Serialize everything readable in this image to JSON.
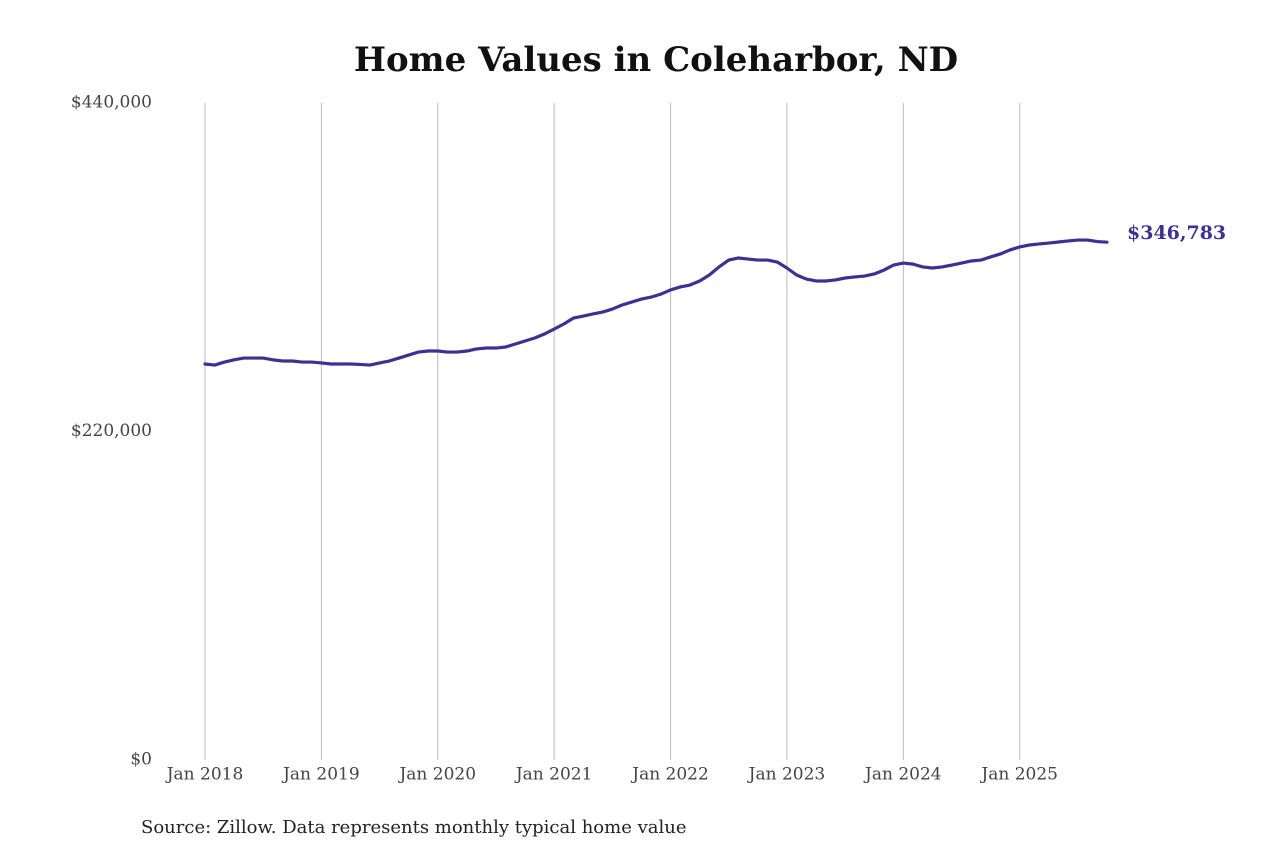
{
  "chart_data": {
    "type": "line",
    "title": "Home Values in Coleharbor, ND",
    "source": "Source: Zillow. Data represents monthly typical home value",
    "x": [
      "2018-01",
      "2018-02",
      "2018-03",
      "2018-04",
      "2018-05",
      "2018-06",
      "2018-07",
      "2018-08",
      "2018-09",
      "2018-10",
      "2018-11",
      "2018-12",
      "2019-01",
      "2019-02",
      "2019-03",
      "2019-04",
      "2019-05",
      "2019-06",
      "2019-07",
      "2019-08",
      "2019-09",
      "2019-10",
      "2019-11",
      "2019-12",
      "2020-01",
      "2020-02",
      "2020-03",
      "2020-04",
      "2020-05",
      "2020-06",
      "2020-07",
      "2020-08",
      "2020-09",
      "2020-10",
      "2020-11",
      "2020-12",
      "2021-01",
      "2021-02",
      "2021-03",
      "2021-04",
      "2021-05",
      "2021-06",
      "2021-07",
      "2021-08",
      "2021-09",
      "2021-10",
      "2021-11",
      "2021-12",
      "2022-01",
      "2022-02",
      "2022-03",
      "2022-04",
      "2022-05",
      "2022-06",
      "2022-07",
      "2022-08",
      "2022-09",
      "2022-10",
      "2022-11",
      "2022-12",
      "2023-01",
      "2023-02",
      "2023-03",
      "2023-04",
      "2023-05",
      "2023-06",
      "2023-07",
      "2023-08",
      "2023-09",
      "2023-10",
      "2023-11",
      "2023-12",
      "2024-01",
      "2024-02",
      "2024-03",
      "2024-04",
      "2024-05",
      "2024-06",
      "2024-07",
      "2024-08",
      "2024-09",
      "2024-10",
      "2024-11",
      "2024-12",
      "2025-01",
      "2025-02",
      "2025-03",
      "2025-04",
      "2025-05",
      "2025-06",
      "2025-07",
      "2025-08",
      "2025-09",
      "2025-10"
    ],
    "series": [
      {
        "color": "#3b3192",
        "values": [
          265200,
          264500,
          266500,
          268000,
          269200,
          269200,
          269200,
          268000,
          267200,
          267200,
          266500,
          266500,
          265900,
          265200,
          265200,
          265200,
          264900,
          264500,
          265900,
          267200,
          269200,
          271200,
          273200,
          273900,
          273900,
          273200,
          273200,
          273900,
          275300,
          275900,
          275900,
          276600,
          278600,
          280600,
          282600,
          285300,
          288600,
          292000,
          296000,
          297300,
          298700,
          300000,
          302000,
          304700,
          306700,
          308700,
          310000,
          312000,
          314800,
          316800,
          318100,
          320800,
          324800,
          330200,
          334800,
          336200,
          335500,
          334800,
          334800,
          333500,
          329500,
          324800,
          322100,
          320800,
          320800,
          321500,
          322800,
          323500,
          324100,
          325500,
          328100,
          331500,
          332800,
          332100,
          330200,
          329500,
          330200,
          331500,
          332800,
          334200,
          334800,
          336900,
          338900,
          341600,
          343600,
          344900,
          345600,
          346200,
          346900,
          347600,
          348200,
          348200,
          347200,
          346783
        ],
        "value_labels": [
          null,
          null,
          null,
          null,
          null,
          null,
          null,
          null,
          null,
          null,
          null,
          null,
          null,
          null,
          null,
          null,
          null,
          null,
          null,
          null,
          null,
          null,
          null,
          null,
          null,
          null,
          null,
          null,
          null,
          null,
          null,
          null,
          null,
          null,
          null,
          null,
          null,
          null,
          null,
          null,
          null,
          null,
          null,
          null,
          null,
          null,
          null,
          null,
          null,
          null,
          null,
          null,
          null,
          null,
          null,
          null,
          null,
          null,
          null,
          null,
          null,
          null,
          null,
          null,
          null,
          null,
          null,
          null,
          null,
          null,
          null,
          null,
          null,
          null,
          null,
          null,
          null,
          null,
          null,
          null,
          null,
          null,
          null,
          null,
          null,
          null,
          null,
          null,
          null,
          null,
          null,
          null,
          null,
          "$346,783"
        ]
      }
    ],
    "xlim": [
      "2018-01",
      "2025-10"
    ],
    "xticks": [
      {
        "value": "2018-01",
        "label": "Jan 2018"
      },
      {
        "value": "2019-01",
        "label": "Jan 2019"
      },
      {
        "value": "2020-01",
        "label": "Jan 2020"
      },
      {
        "value": "2021-01",
        "label": "Jan 2021"
      },
      {
        "value": "2022-01",
        "label": "Jan 2022"
      },
      {
        "value": "2023-01",
        "label": "Jan 2023"
      },
      {
        "value": "2024-01",
        "label": "Jan 2024"
      },
      {
        "value": "2025-01",
        "label": "Jan 2025"
      }
    ],
    "ylim": [
      0,
      440000
    ],
    "yticks": [
      {
        "value": 0,
        "label": "$0"
      },
      {
        "value": 220000,
        "label": "$220,000"
      },
      {
        "value": 440000,
        "label": "$440,000"
      }
    ],
    "grid": "x"
  }
}
